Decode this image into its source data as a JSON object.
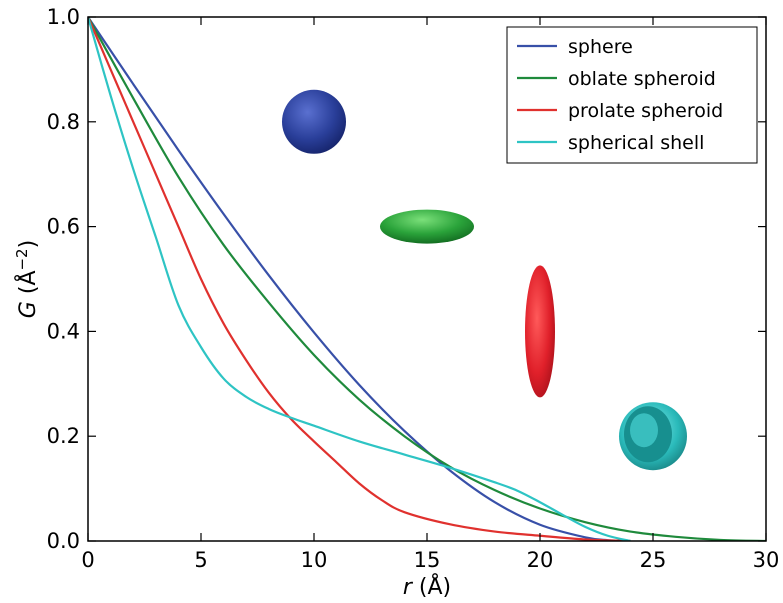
{
  "chart_data": {
    "type": "line",
    "xlabel_var": "r",
    "xlabel_unit": "(Å)",
    "ylabel_var": "G",
    "ylabel_unit_open": "(Å",
    "ylabel_unit_exp": "−2",
    "ylabel_unit_close": ")",
    "xlim": [
      0,
      30
    ],
    "ylim": [
      0,
      1.0
    ],
    "xticks": [
      0,
      5,
      10,
      15,
      20,
      25,
      30
    ],
    "xtick_labels": [
      "0",
      "5",
      "10",
      "15",
      "20",
      "25",
      "30"
    ],
    "yticks": [
      0.0,
      0.2,
      0.4,
      0.6,
      0.8,
      1.0
    ],
    "ytick_labels": [
      "0.0",
      "0.2",
      "0.4",
      "0.6",
      "0.8",
      "1.0"
    ],
    "grid": false,
    "legend_position": "top-right",
    "series": [
      {
        "name": "sphere",
        "color": "#3850a8",
        "x": [
          0,
          2,
          4,
          6,
          8,
          10,
          12,
          14,
          16,
          18,
          20,
          22,
          23,
          24
        ],
        "y": [
          1.0,
          0.872,
          0.746,
          0.624,
          0.507,
          0.398,
          0.298,
          0.21,
          0.135,
          0.074,
          0.031,
          0.007,
          0.0015,
          0.0
        ]
      },
      {
        "name": "oblate spheroid",
        "color": "#1f8a3c",
        "x": [
          0,
          2,
          4,
          6,
          8,
          10,
          12,
          14,
          16,
          18,
          20,
          22,
          24,
          26,
          28,
          30
        ],
        "y": [
          1.0,
          0.845,
          0.695,
          0.565,
          0.455,
          0.355,
          0.27,
          0.2,
          0.142,
          0.097,
          0.062,
          0.036,
          0.018,
          0.008,
          0.002,
          0.0
        ]
      },
      {
        "name": "prolate spheroid",
        "color": "#e0312e",
        "x": [
          0,
          1,
          2,
          3,
          4,
          5,
          6,
          7,
          8,
          9,
          10,
          11,
          12,
          13,
          14,
          16,
          18,
          20,
          22,
          24
        ],
        "y": [
          1.0,
          0.9,
          0.8,
          0.7,
          0.6,
          0.5,
          0.415,
          0.345,
          0.283,
          0.232,
          0.19,
          0.15,
          0.11,
          0.078,
          0.055,
          0.032,
          0.018,
          0.01,
          0.003,
          0.0
        ]
      },
      {
        "name": "spherical shell",
        "color": "#2ec4c4",
        "x": [
          0,
          1,
          2,
          3,
          4,
          5,
          6,
          7,
          8,
          9,
          10,
          12,
          14,
          16,
          18,
          19,
          20,
          21,
          22,
          23,
          24
        ],
        "y": [
          1.0,
          0.85,
          0.71,
          0.58,
          0.45,
          0.37,
          0.31,
          0.275,
          0.252,
          0.235,
          0.22,
          0.19,
          0.165,
          0.14,
          0.112,
          0.096,
          0.074,
          0.05,
          0.027,
          0.01,
          0.0
        ]
      }
    ],
    "insets": [
      {
        "shape": "sphere",
        "color": "#2a3f9a",
        "x": 10.0,
        "y": 0.8
      },
      {
        "shape": "oblate",
        "color": "#2aa33a",
        "x": 15.0,
        "y": 0.6
      },
      {
        "shape": "prolate",
        "color": "#e0202a",
        "x": 20.0,
        "y": 0.4
      },
      {
        "shape": "shell",
        "color": "#2ababa",
        "x": 25.0,
        "y": 0.2
      }
    ]
  }
}
